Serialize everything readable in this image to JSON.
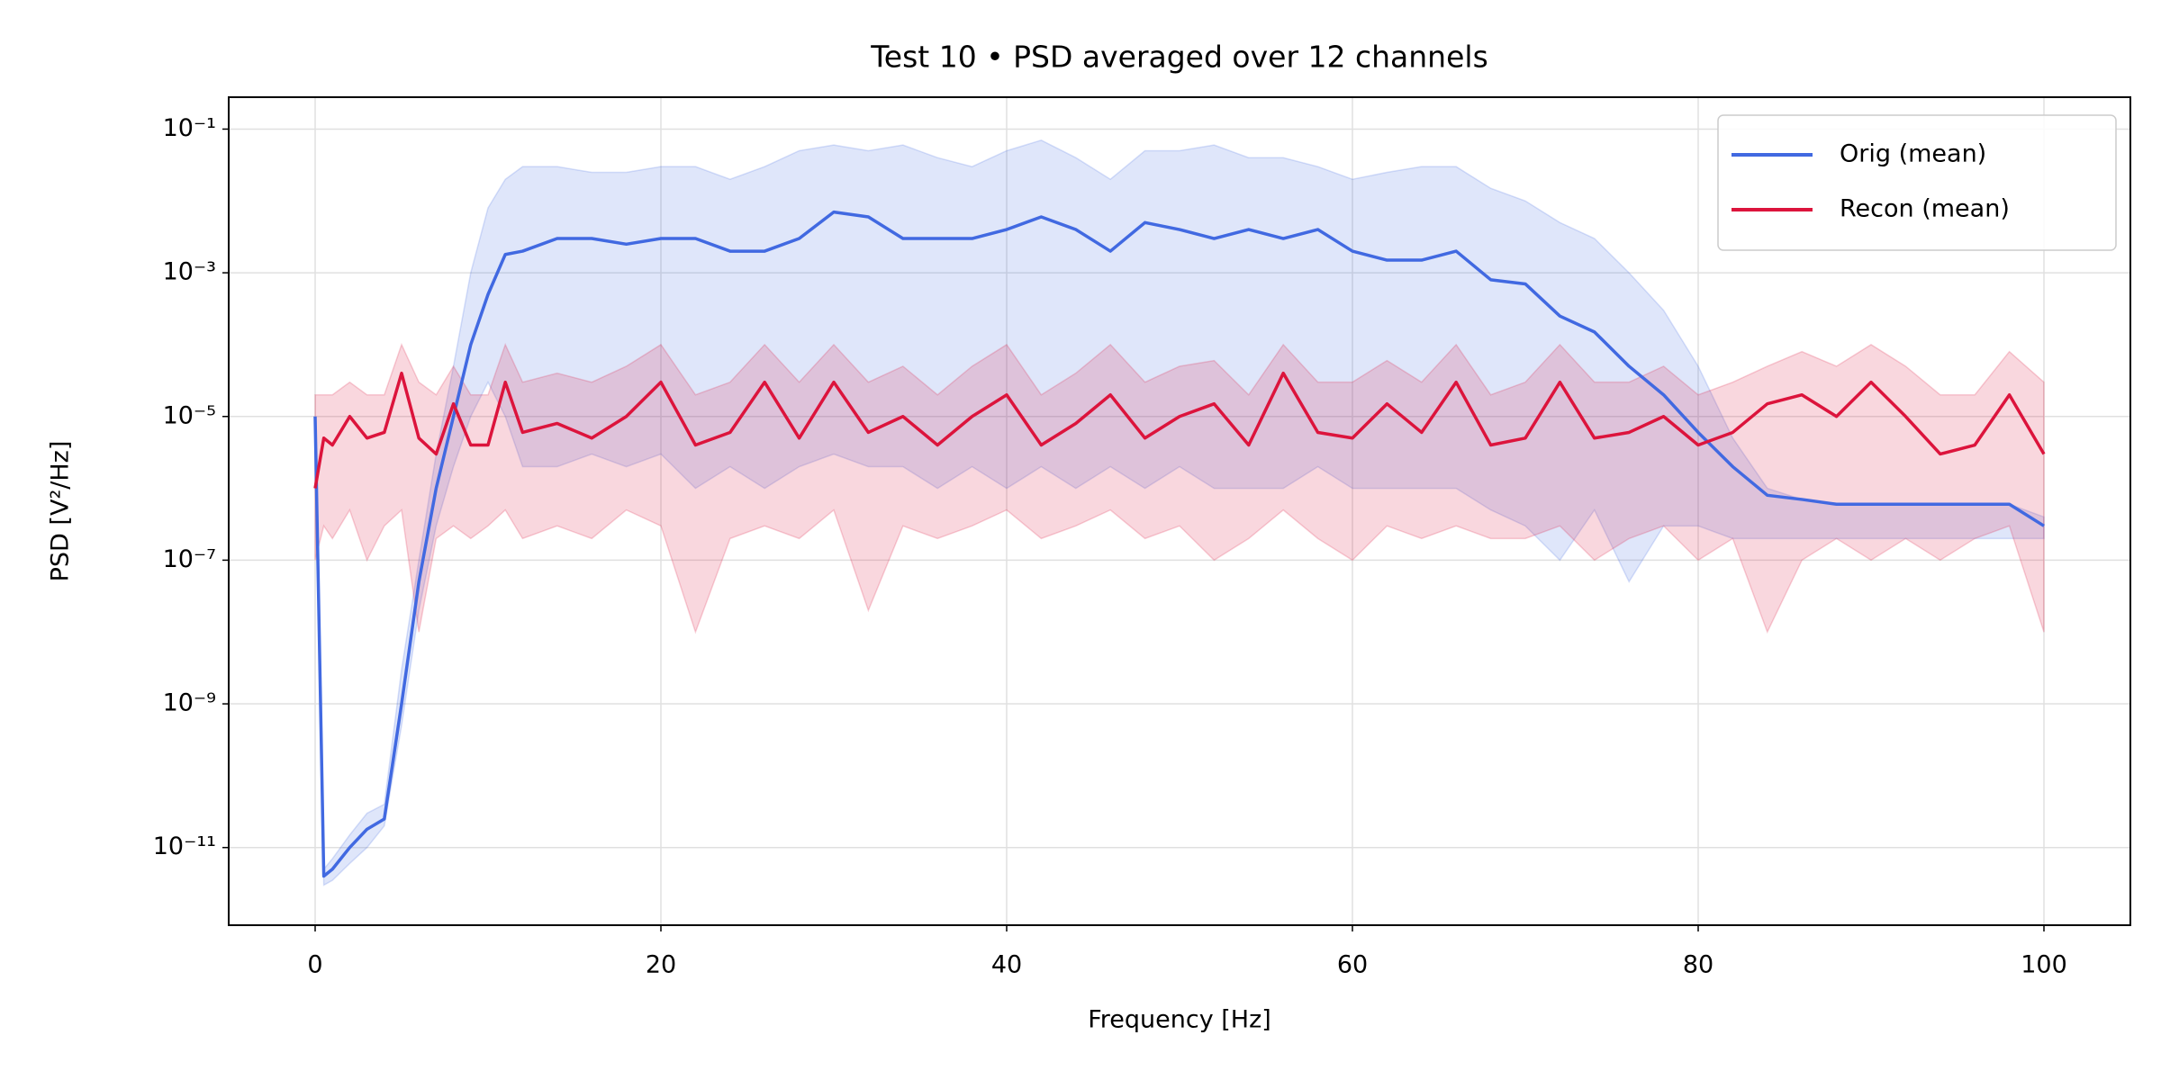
{
  "chart_data": {
    "type": "line",
    "title": "Test 10 • PSD averaged over 12 channels",
    "x_label": "Frequency [Hz]",
    "y_label": "PSD [V²/Hz]",
    "log_y": true,
    "grid": true,
    "legend": "upper right",
    "xlim": [
      -5,
      105
    ],
    "ylim": [
      8.3e-13,
      0.278
    ],
    "xticks": [
      0,
      20,
      40,
      60,
      80,
      100
    ],
    "yticks": [
      {
        "value": 1e-11,
        "label": "10⁻¹¹"
      },
      {
        "value": 1e-09,
        "label": "10⁻⁹"
      },
      {
        "value": 1e-07,
        "label": "10⁻⁷"
      },
      {
        "value": 1e-05,
        "label": "10⁻⁵"
      },
      {
        "value": 0.001,
        "label": "10⁻³"
      },
      {
        "value": 0.1,
        "label": "10⁻¹"
      }
    ],
    "x": [
      0,
      0.5,
      1,
      2,
      3,
      4,
      5,
      6,
      7,
      8,
      9,
      10,
      11,
      12,
      14,
      16,
      18,
      20,
      22,
      24,
      26,
      28,
      30,
      32,
      34,
      36,
      38,
      40,
      42,
      44,
      46,
      48,
      50,
      52,
      54,
      56,
      58,
      60,
      62,
      64,
      66,
      68,
      70,
      72,
      74,
      76,
      78,
      80,
      82,
      84,
      86,
      88,
      90,
      92,
      94,
      96,
      98,
      100
    ],
    "series": [
      {
        "name": "Orig (mean)",
        "color": "#4169e1",
        "values": [
          1e-05,
          4e-12,
          5e-12,
          1e-11,
          1.8e-11,
          2.5e-11,
          1e-09,
          5e-08,
          1e-06,
          1e-05,
          0.0001,
          0.0005,
          0.0018,
          0.002,
          0.003,
          0.003,
          0.0025,
          0.003,
          0.003,
          0.002,
          0.002,
          0.003,
          0.007,
          0.006,
          0.003,
          0.003,
          0.003,
          0.004,
          0.006,
          0.004,
          0.002,
          0.005,
          0.004,
          0.003,
          0.004,
          0.003,
          0.004,
          0.002,
          0.0015,
          0.0015,
          0.002,
          0.0008,
          0.0007,
          0.00025,
          0.00015,
          5e-05,
          2e-05,
          6e-06,
          2e-06,
          8e-07,
          7e-07,
          6e-07,
          6e-07,
          6e-07,
          6e-07,
          6e-07,
          6e-07,
          3e-07
        ],
        "upper": [
          1e-05,
          5e-12,
          7e-12,
          1.5e-11,
          3e-11,
          4e-11,
          3e-09,
          1e-07,
          3e-06,
          5e-05,
          0.001,
          0.008,
          0.02,
          0.03,
          0.03,
          0.025,
          0.025,
          0.03,
          0.03,
          0.02,
          0.03,
          0.05,
          0.06,
          0.05,
          0.06,
          0.04,
          0.03,
          0.05,
          0.07,
          0.04,
          0.02,
          0.05,
          0.05,
          0.06,
          0.04,
          0.04,
          0.03,
          0.02,
          0.025,
          0.03,
          0.03,
          0.015,
          0.01,
          0.005,
          0.003,
          0.001,
          0.0003,
          5e-05,
          5e-06,
          1e-06,
          7e-07,
          6e-07,
          6e-07,
          6e-07,
          6e-07,
          6e-07,
          6e-07,
          4e-07
        ],
        "lower": [
          1e-05,
          3e-12,
          3.5e-12,
          6e-12,
          1e-11,
          2e-11,
          5e-10,
          2e-08,
          3e-07,
          2e-06,
          1e-05,
          3e-05,
          1e-05,
          2e-06,
          2e-06,
          3e-06,
          2e-06,
          3e-06,
          1e-06,
          2e-06,
          1e-06,
          2e-06,
          3e-06,
          2e-06,
          2e-06,
          1e-06,
          2e-06,
          1e-06,
          2e-06,
          1e-06,
          2e-06,
          1e-06,
          2e-06,
          1e-06,
          1e-06,
          1e-06,
          2e-06,
          1e-06,
          1e-06,
          1e-06,
          1e-06,
          5e-07,
          3e-07,
          1e-07,
          5e-07,
          5e-08,
          3e-07,
          3e-07,
          2e-07,
          2e-07,
          2e-07,
          2e-07,
          2e-07,
          2e-07,
          2e-07,
          2e-07,
          2e-07,
          2e-07
        ]
      },
      {
        "name": "Recon (mean)",
        "color": "#dc143c",
        "values": [
          1e-06,
          5e-06,
          4e-06,
          1e-05,
          5e-06,
          6e-06,
          4e-05,
          5e-06,
          3e-06,
          1.5e-05,
          4e-06,
          4e-06,
          3e-05,
          6e-06,
          8e-06,
          5e-06,
          1e-05,
          3e-05,
          4e-06,
          6e-06,
          3e-05,
          5e-06,
          3e-05,
          6e-06,
          1e-05,
          4e-06,
          1e-05,
          2e-05,
          4e-06,
          8e-06,
          2e-05,
          5e-06,
          1e-05,
          1.5e-05,
          4e-06,
          4e-05,
          6e-06,
          5e-06,
          1.5e-05,
          6e-06,
          3e-05,
          4e-06,
          5e-06,
          3e-05,
          5e-06,
          6e-06,
          1e-05,
          4e-06,
          6e-06,
          1.5e-05,
          2e-05,
          1e-05,
          3e-05,
          1e-05,
          3e-06,
          4e-06,
          2e-05,
          3e-06
        ],
        "upper": [
          2e-05,
          2e-05,
          2e-05,
          3e-05,
          2e-05,
          2e-05,
          0.0001,
          3e-05,
          2e-05,
          5e-05,
          2e-05,
          2e-05,
          0.0001,
          3e-05,
          4e-05,
          3e-05,
          5e-05,
          0.0001,
          2e-05,
          3e-05,
          0.0001,
          3e-05,
          0.0001,
          3e-05,
          5e-05,
          2e-05,
          5e-05,
          0.0001,
          2e-05,
          4e-05,
          0.0001,
          3e-05,
          5e-05,
          6e-05,
          2e-05,
          0.0001,
          3e-05,
          3e-05,
          6e-05,
          3e-05,
          0.0001,
          2e-05,
          3e-05,
          0.0001,
          3e-05,
          3e-05,
          5e-05,
          2e-05,
          3e-05,
          5e-05,
          8e-05,
          5e-05,
          0.0001,
          5e-05,
          2e-05,
          2e-05,
          8e-05,
          3e-05
        ],
        "lower": [
          1e-07,
          3e-07,
          2e-07,
          5e-07,
          1e-07,
          3e-07,
          5e-07,
          1e-08,
          2e-07,
          3e-07,
          2e-07,
          3e-07,
          5e-07,
          2e-07,
          3e-07,
          2e-07,
          5e-07,
          3e-07,
          1e-08,
          2e-07,
          3e-07,
          2e-07,
          5e-07,
          2e-08,
          3e-07,
          2e-07,
          3e-07,
          5e-07,
          2e-07,
          3e-07,
          5e-07,
          2e-07,
          3e-07,
          1e-07,
          2e-07,
          5e-07,
          2e-07,
          1e-07,
          3e-07,
          2e-07,
          3e-07,
          2e-07,
          2e-07,
          3e-07,
          1e-07,
          2e-07,
          3e-07,
          1e-07,
          2e-07,
          1e-08,
          1e-07,
          2e-07,
          1e-07,
          2e-07,
          1e-07,
          2e-07,
          3e-07,
          1e-08
        ]
      }
    ]
  }
}
